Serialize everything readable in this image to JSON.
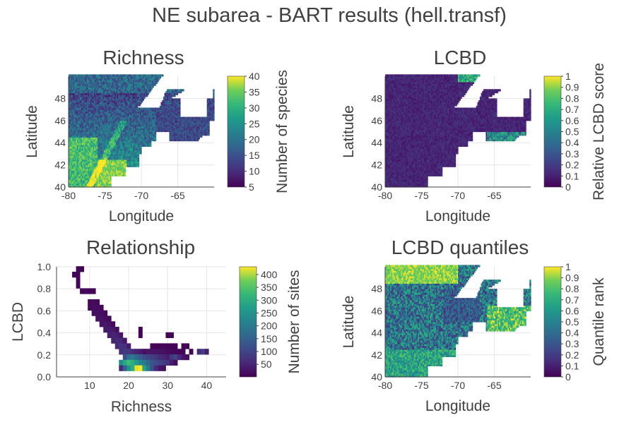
{
  "figure_title": "NE subarea - BART results (hell.transf)",
  "colors": {
    "viridis_low": "#440154",
    "viridis_mid": "#21918c",
    "viridis_high": "#fde725",
    "grid": "#e6e6e6",
    "axis": "#404040"
  },
  "chart_data": [
    {
      "id": "richness",
      "type": "heatmap",
      "title": "Richness",
      "xlabel": "Longitude",
      "ylabel": "Latitude",
      "xlim": [
        -80,
        -60
      ],
      "ylim": [
        40,
        50
      ],
      "xticks": [
        -80,
        -75,
        -70,
        -65
      ],
      "yticks": [
        40,
        42,
        44,
        46,
        48
      ],
      "colorbar": {
        "label": "Number of species",
        "min": 5,
        "max": 40,
        "ticks": [
          5,
          10,
          15,
          20,
          25,
          30,
          35,
          40
        ]
      },
      "description_values": {
        "south_west": 38,
        "north": 18,
        "maritimes": 15
      }
    },
    {
      "id": "lcbd",
      "type": "heatmap",
      "title": "LCBD",
      "xlabel": "Longitude",
      "ylabel": "Latitude",
      "xlim": [
        -80,
        -60
      ],
      "ylim": [
        40,
        50
      ],
      "xticks": [
        -80,
        -75,
        -70,
        -65
      ],
      "yticks": [
        40,
        42,
        44,
        46,
        48
      ],
      "colorbar": {
        "label": "Relative LCBD score",
        "min": 0,
        "max": 1,
        "ticks": [
          0,
          0.1,
          0.2,
          0.3,
          0.4,
          0.5,
          0.6,
          0.7,
          0.8,
          0.9,
          1.0
        ]
      },
      "description_values": {
        "typical": 0.15,
        "edge_high": 0.9
      }
    },
    {
      "id": "relationship",
      "type": "heatmap",
      "title": "Relationship",
      "xlabel": "Richness",
      "ylabel": "LCBD",
      "xlim": [
        1.5,
        45
      ],
      "ylim": [
        0,
        1
      ],
      "xticks": [
        10,
        20,
        30,
        40
      ],
      "yticks": [
        0.0,
        0.2,
        0.4,
        0.6,
        0.8,
        1.0
      ],
      "colorbar": {
        "label": "Number of sites",
        "min": 1,
        "max": 430,
        "ticks": [
          50,
          100,
          150,
          200,
          250,
          300,
          350,
          400
        ]
      },
      "bins": [
        {
          "x": 7,
          "y": 0.98,
          "n": 5
        },
        {
          "x": 8,
          "y": 0.98,
          "n": 3
        },
        {
          "x": 6,
          "y": 0.93,
          "n": 4
        },
        {
          "x": 7,
          "y": 0.93,
          "n": 6
        },
        {
          "x": 7,
          "y": 0.88,
          "n": 5
        },
        {
          "x": 7,
          "y": 0.83,
          "n": 6
        },
        {
          "x": 8,
          "y": 0.78,
          "n": 8
        },
        {
          "x": 9,
          "y": 0.78,
          "n": 10
        },
        {
          "x": 10,
          "y": 0.78,
          "n": 7
        },
        {
          "x": 11,
          "y": 0.78,
          "n": 5
        },
        {
          "x": 10,
          "y": 0.68,
          "n": 12
        },
        {
          "x": 11,
          "y": 0.68,
          "n": 15
        },
        {
          "x": 12,
          "y": 0.68,
          "n": 10
        },
        {
          "x": 10,
          "y": 0.63,
          "n": 14
        },
        {
          "x": 11,
          "y": 0.63,
          "n": 18
        },
        {
          "x": 12,
          "y": 0.63,
          "n": 16
        },
        {
          "x": 13,
          "y": 0.63,
          "n": 9
        },
        {
          "x": 11,
          "y": 0.58,
          "n": 20
        },
        {
          "x": 12,
          "y": 0.58,
          "n": 22
        },
        {
          "x": 13,
          "y": 0.58,
          "n": 18
        },
        {
          "x": 14,
          "y": 0.58,
          "n": 10
        },
        {
          "x": 12,
          "y": 0.53,
          "n": 24
        },
        {
          "x": 13,
          "y": 0.53,
          "n": 26
        },
        {
          "x": 14,
          "y": 0.53,
          "n": 20
        },
        {
          "x": 15,
          "y": 0.53,
          "n": 12
        },
        {
          "x": 13,
          "y": 0.48,
          "n": 28
        },
        {
          "x": 14,
          "y": 0.48,
          "n": 32
        },
        {
          "x": 15,
          "y": 0.48,
          "n": 26
        },
        {
          "x": 16,
          "y": 0.48,
          "n": 14
        },
        {
          "x": 14,
          "y": 0.43,
          "n": 34
        },
        {
          "x": 15,
          "y": 0.43,
          "n": 40
        },
        {
          "x": 16,
          "y": 0.43,
          "n": 36
        },
        {
          "x": 17,
          "y": 0.43,
          "n": 20
        },
        {
          "x": 15,
          "y": 0.38,
          "n": 42
        },
        {
          "x": 16,
          "y": 0.38,
          "n": 48
        },
        {
          "x": 17,
          "y": 0.38,
          "n": 44
        },
        {
          "x": 18,
          "y": 0.38,
          "n": 28
        },
        {
          "x": 16,
          "y": 0.33,
          "n": 50
        },
        {
          "x": 17,
          "y": 0.33,
          "n": 58
        },
        {
          "x": 18,
          "y": 0.33,
          "n": 52
        },
        {
          "x": 19,
          "y": 0.33,
          "n": 30
        },
        {
          "x": 17,
          "y": 0.28,
          "n": 60
        },
        {
          "x": 18,
          "y": 0.28,
          "n": 72
        },
        {
          "x": 19,
          "y": 0.28,
          "n": 64
        },
        {
          "x": 20,
          "y": 0.28,
          "n": 38
        },
        {
          "x": 23,
          "y": 0.43,
          "n": 3
        },
        {
          "x": 23,
          "y": 0.38,
          "n": 4
        },
        {
          "x": 18,
          "y": 0.23,
          "n": 70
        },
        {
          "x": 19,
          "y": 0.23,
          "n": 86
        },
        {
          "x": 20,
          "y": 0.23,
          "n": 80
        },
        {
          "x": 21,
          "y": 0.23,
          "n": 60
        },
        {
          "x": 22,
          "y": 0.23,
          "n": 48
        },
        {
          "x": 23,
          "y": 0.23,
          "n": 40
        },
        {
          "x": 24,
          "y": 0.23,
          "n": 22
        },
        {
          "x": 26,
          "y": 0.28,
          "n": 8
        },
        {
          "x": 27,
          "y": 0.28,
          "n": 6
        },
        {
          "x": 28,
          "y": 0.28,
          "n": 7
        },
        {
          "x": 29,
          "y": 0.28,
          "n": 9
        },
        {
          "x": 30,
          "y": 0.28,
          "n": 6
        },
        {
          "x": 31,
          "y": 0.28,
          "n": 5
        },
        {
          "x": 32,
          "y": 0.28,
          "n": 4
        },
        {
          "x": 34,
          "y": 0.28,
          "n": 3
        },
        {
          "x": 35,
          "y": 0.28,
          "n": 4
        },
        {
          "x": 30,
          "y": 0.38,
          "n": 3
        },
        {
          "x": 31,
          "y": 0.38,
          "n": 3
        },
        {
          "x": 25,
          "y": 0.23,
          "n": 30
        },
        {
          "x": 26,
          "y": 0.23,
          "n": 28
        },
        {
          "x": 27,
          "y": 0.23,
          "n": 26
        },
        {
          "x": 28,
          "y": 0.23,
          "n": 24
        },
        {
          "x": 29,
          "y": 0.23,
          "n": 20
        },
        {
          "x": 30,
          "y": 0.23,
          "n": 16
        },
        {
          "x": 31,
          "y": 0.23,
          "n": 12
        },
        {
          "x": 32,
          "y": 0.23,
          "n": 10
        },
        {
          "x": 33,
          "y": 0.23,
          "n": 8
        },
        {
          "x": 34,
          "y": 0.23,
          "n": 6
        },
        {
          "x": 36,
          "y": 0.23,
          "n": 5
        },
        {
          "x": 38,
          "y": 0.23,
          "n": 60
        },
        {
          "x": 39,
          "y": 0.23,
          "n": 90
        },
        {
          "x": 40,
          "y": 0.23,
          "n": 40
        },
        {
          "x": 19,
          "y": 0.18,
          "n": 120
        },
        {
          "x": 20,
          "y": 0.18,
          "n": 180
        },
        {
          "x": 21,
          "y": 0.18,
          "n": 200
        },
        {
          "x": 22,
          "y": 0.18,
          "n": 160
        },
        {
          "x": 23,
          "y": 0.18,
          "n": 140
        },
        {
          "x": 24,
          "y": 0.18,
          "n": 110
        },
        {
          "x": 25,
          "y": 0.18,
          "n": 100
        },
        {
          "x": 26,
          "y": 0.18,
          "n": 90
        },
        {
          "x": 27,
          "y": 0.18,
          "n": 80
        },
        {
          "x": 28,
          "y": 0.18,
          "n": 60
        },
        {
          "x": 29,
          "y": 0.18,
          "n": 50
        },
        {
          "x": 30,
          "y": 0.18,
          "n": 40
        },
        {
          "x": 31,
          "y": 0.18,
          "n": 80
        },
        {
          "x": 32,
          "y": 0.18,
          "n": 100
        },
        {
          "x": 33,
          "y": 0.18,
          "n": 60
        },
        {
          "x": 34,
          "y": 0.18,
          "n": 30
        },
        {
          "x": 35,
          "y": 0.18,
          "n": 20
        },
        {
          "x": 18,
          "y": 0.13,
          "n": 230
        },
        {
          "x": 19,
          "y": 0.13,
          "n": 290
        },
        {
          "x": 20,
          "y": 0.13,
          "n": 330
        },
        {
          "x": 21,
          "y": 0.13,
          "n": 300
        },
        {
          "x": 22,
          "y": 0.13,
          "n": 260
        },
        {
          "x": 23,
          "y": 0.13,
          "n": 220
        },
        {
          "x": 24,
          "y": 0.13,
          "n": 200
        },
        {
          "x": 25,
          "y": 0.13,
          "n": 160
        },
        {
          "x": 26,
          "y": 0.13,
          "n": 130
        },
        {
          "x": 27,
          "y": 0.13,
          "n": 110
        },
        {
          "x": 28,
          "y": 0.13,
          "n": 100
        },
        {
          "x": 29,
          "y": 0.13,
          "n": 90
        },
        {
          "x": 30,
          "y": 0.13,
          "n": 70
        },
        {
          "x": 31,
          "y": 0.13,
          "n": 40
        },
        {
          "x": 32,
          "y": 0.13,
          "n": 20
        },
        {
          "x": 18,
          "y": 0.08,
          "n": 60
        },
        {
          "x": 19,
          "y": 0.08,
          "n": 150
        },
        {
          "x": 20,
          "y": 0.08,
          "n": 250
        },
        {
          "x": 21,
          "y": 0.08,
          "n": 300
        },
        {
          "x": 22,
          "y": 0.08,
          "n": 420
        },
        {
          "x": 23,
          "y": 0.08,
          "n": 430
        },
        {
          "x": 24,
          "y": 0.08,
          "n": 280
        },
        {
          "x": 25,
          "y": 0.08,
          "n": 200
        },
        {
          "x": 26,
          "y": 0.08,
          "n": 120
        },
        {
          "x": 27,
          "y": 0.08,
          "n": 60
        },
        {
          "x": 28,
          "y": 0.08,
          "n": 30
        },
        {
          "x": 29,
          "y": 0.08,
          "n": 20
        }
      ]
    },
    {
      "id": "lcbd_quantiles",
      "type": "heatmap",
      "title": "LCBD quantiles",
      "xlabel": "Longitude",
      "ylabel": "Latitude",
      "xlim": [
        -80,
        -60
      ],
      "ylim": [
        40,
        50
      ],
      "xticks": [
        -80,
        -75,
        -70,
        -65
      ],
      "yticks": [
        40,
        42,
        44,
        46,
        48
      ],
      "colorbar": {
        "label": "Quantile rank",
        "min": 0,
        "max": 1,
        "ticks": [
          0,
          0.1,
          0.2,
          0.3,
          0.4,
          0.5,
          0.6,
          0.7,
          0.8,
          0.9,
          1.0
        ]
      },
      "description_values": {
        "north": 0.9,
        "south": 0.55,
        "central": 0.2
      }
    }
  ]
}
